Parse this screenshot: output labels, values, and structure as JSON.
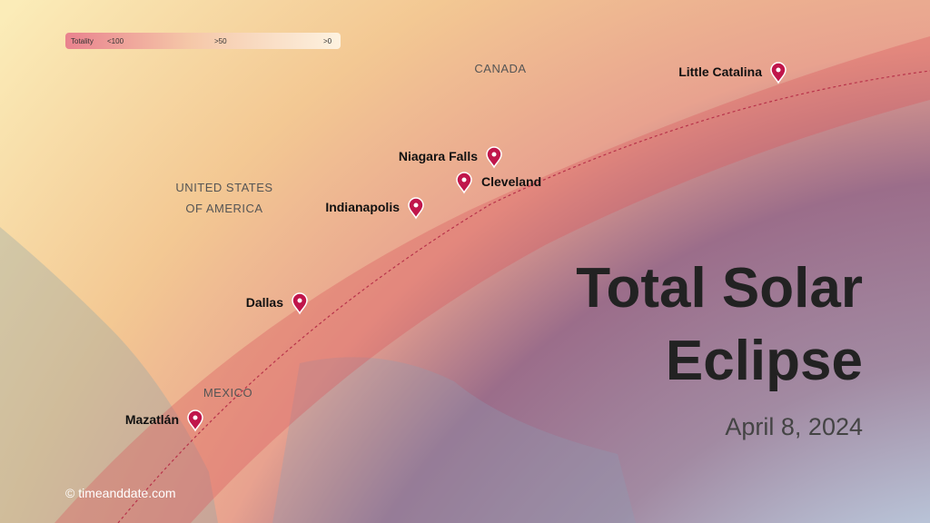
{
  "legend": {
    "title": "Totality",
    "labels": [
      "<100",
      ">50",
      ">0"
    ]
  },
  "regions": [
    "CANADA",
    "UNITED STATES",
    "OF AMERICA",
    "MEXICO"
  ],
  "cities": [
    "Little Catalina",
    "Niagara Falls",
    "Cleveland",
    "Indianapolis",
    "Dallas",
    "Mazatlán"
  ],
  "title": {
    "lines": [
      "Total Solar",
      "Eclipse"
    ],
    "date": "April 8, 2024"
  },
  "credit": "© timeanddate.com"
}
